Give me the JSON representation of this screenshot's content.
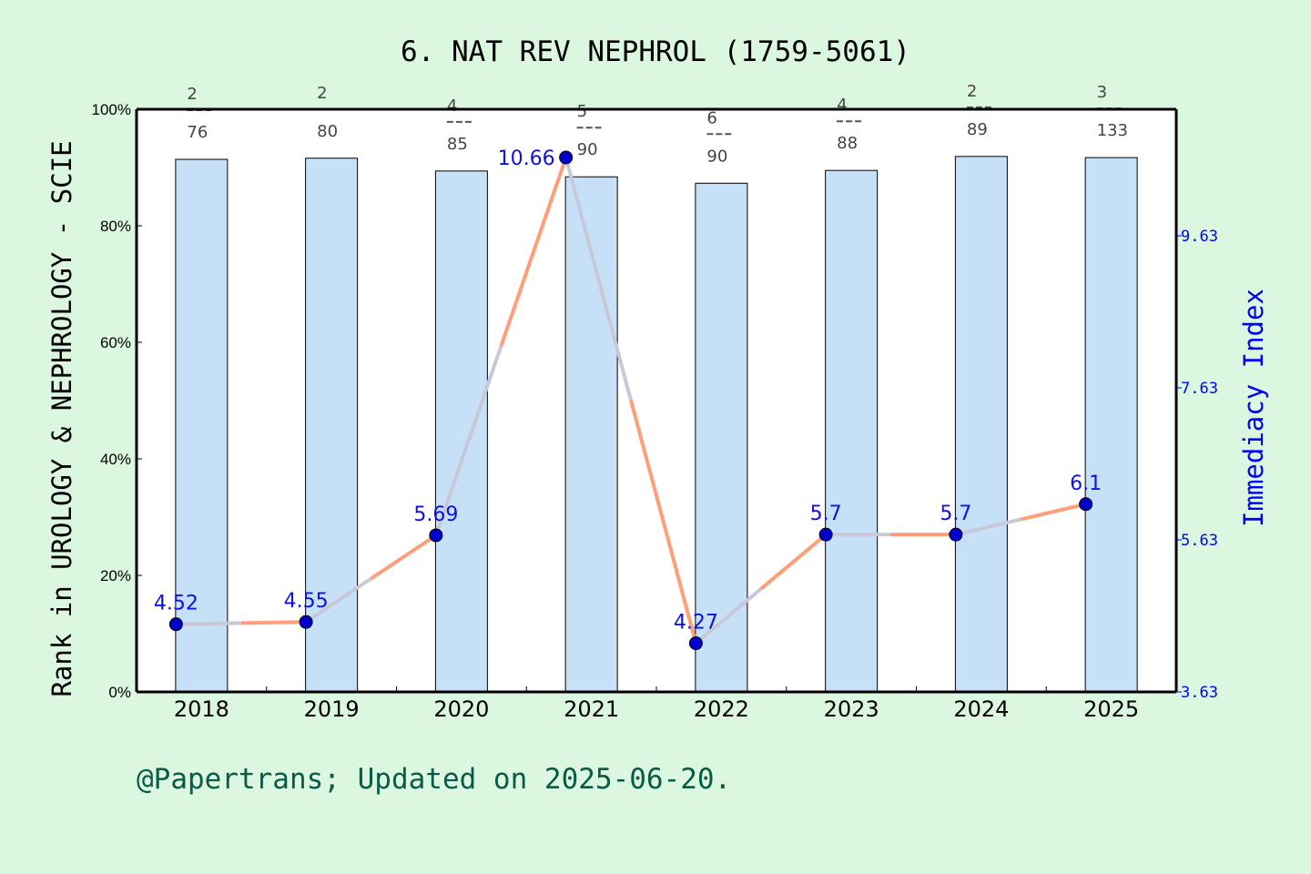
{
  "chart_data": {
    "type": "bar+line",
    "title": "6. NAT REV NEPHROL (1759-5061)",
    "ylabel": "Rank in UROLOGY & NEPHROLOGY - SCIE",
    "y2label": "Immediacy Index",
    "categories": [
      "2018",
      "2019",
      "2020",
      "2021",
      "2022",
      "2023",
      "2024",
      "2025"
    ],
    "bar_values_percent": [
      91.4,
      91.6,
      89.4,
      88.4,
      87.3,
      89.5,
      91.9,
      91.7
    ],
    "rank_labels": [
      {
        "rank": "2",
        "total": "76"
      },
      {
        "rank": "2",
        "total": "80"
      },
      {
        "rank": "4",
        "total": "85"
      },
      {
        "rank": "5",
        "total": "90"
      },
      {
        "rank": "6",
        "total": "90"
      },
      {
        "rank": "4",
        "total": "88"
      },
      {
        "rank": "2",
        "total": "89"
      },
      {
        "rank": "3",
        "total": "133"
      }
    ],
    "line_values": [
      4.52,
      4.55,
      5.69,
      10.66,
      4.27,
      5.7,
      5.7,
      6.1
    ],
    "line_labels": [
      "4.52",
      "4.55",
      "5.69",
      "10.66",
      "4.27",
      "5.7",
      "5.7",
      "6.1"
    ],
    "ylim": [
      0,
      100
    ],
    "yticks": [
      "0%",
      "20%",
      "40%",
      "60%",
      "80%",
      "100%"
    ],
    "y2lim": [
      3.63,
      11.3
    ],
    "y2ticks": [
      "3.63",
      "5.63",
      "7.63",
      "9.63"
    ],
    "colors": {
      "bar": "#c5e0f7",
      "line": "#ff9e78",
      "line_overlay": "#c8c8d8",
      "marker": "#0000cc",
      "right_axis": "#0000ff",
      "background": "#dbf7df",
      "footer": "#0a5a4a"
    }
  },
  "footer": "@Papertrans; Updated on 2025-06-20."
}
